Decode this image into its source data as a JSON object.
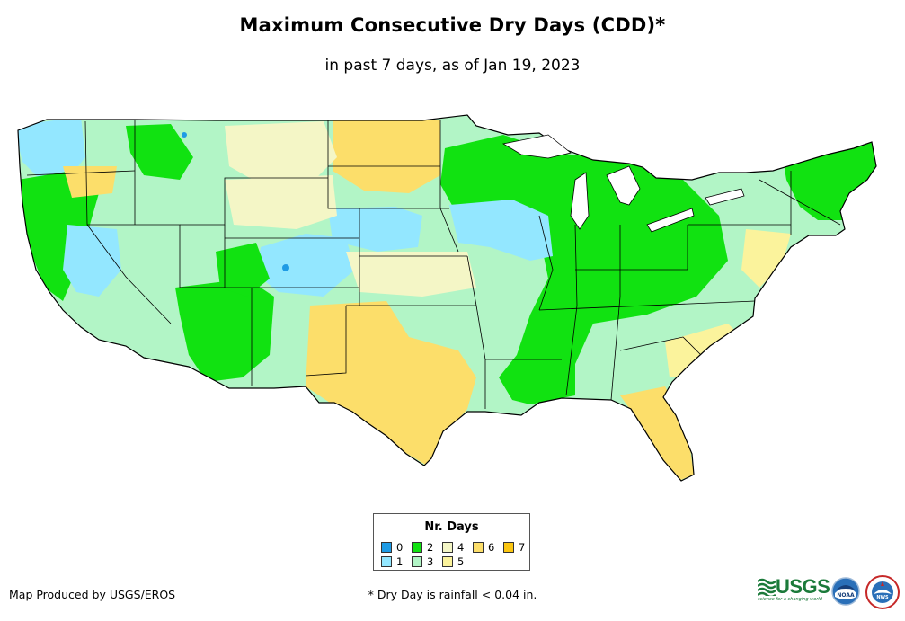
{
  "title": "Maximum Consecutive Dry Days (CDD)*",
  "subtitle": "in past 7 days, as of Jan 19, 2023",
  "legend": {
    "title": "Nr. Days",
    "items": [
      {
        "label": "0",
        "color": "#1e9be5"
      },
      {
        "label": "1",
        "color": "#93e7ff"
      },
      {
        "label": "2",
        "color": "#11e211"
      },
      {
        "label": "3",
        "color": "#b2f5c6"
      },
      {
        "label": "4",
        "color": "#f4f6c6"
      },
      {
        "label": "5",
        "color": "#fbf39c"
      },
      {
        "label": "6",
        "color": "#fcde6a"
      },
      {
        "label": "7",
        "color": "#fbc611"
      }
    ]
  },
  "credit": "Map Produced by USGS/EROS",
  "footnote": "* Dry Day is rainfall < 0.04 in.",
  "logos": {
    "usgs": "USGS",
    "usgs_tagline": "science for a changing world",
    "noaa": "NOAA",
    "nws": "NWS"
  }
}
